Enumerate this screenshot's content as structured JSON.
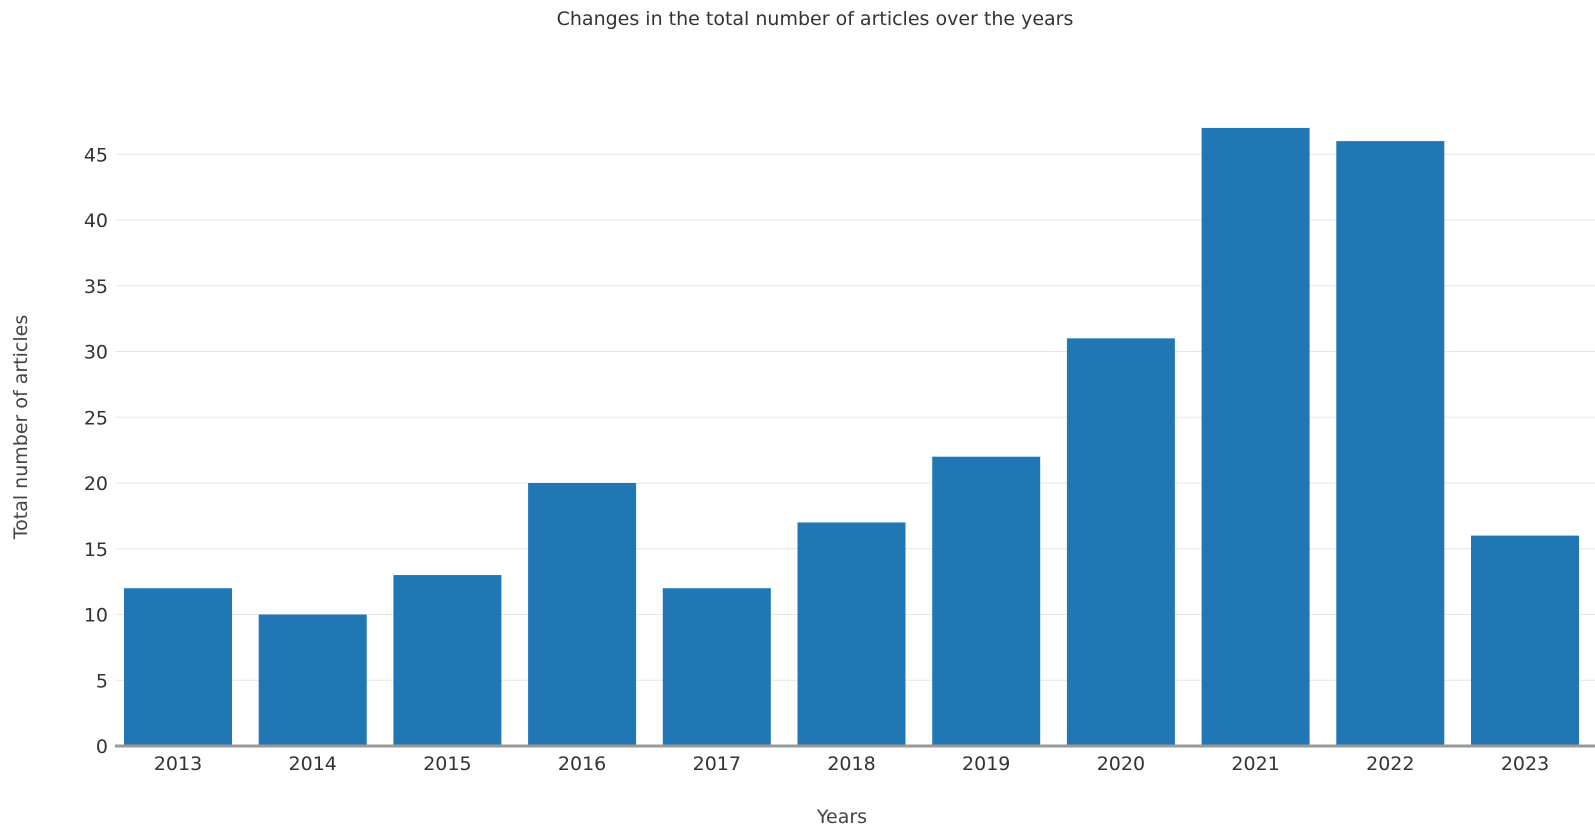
{
  "chart_data": {
    "type": "bar",
    "title": "Changes in the total number of articles over the years",
    "xlabel": "Years",
    "ylabel": "Total number of articles",
    "categories": [
      "2013",
      "2014",
      "2015",
      "2016",
      "2017",
      "2018",
      "2019",
      "2020",
      "2021",
      "2022",
      "2023"
    ],
    "values": [
      12,
      10,
      13,
      20,
      12,
      17,
      22,
      31,
      47,
      46,
      16
    ],
    "ylim": [
      0,
      47
    ],
    "yticks": [
      0,
      5,
      10,
      15,
      20,
      25,
      30,
      35,
      40,
      45
    ],
    "grid": true,
    "legend": "none",
    "bar_color": "#2077b4"
  }
}
